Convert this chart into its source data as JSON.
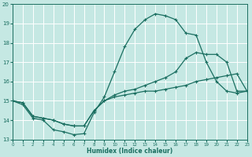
{
  "xlabel": "Humidex (Indice chaleur)",
  "bg_color": "#c5e8e3",
  "grid_color": "#b0d8d0",
  "line_color": "#1a6e60",
  "xlim": [
    0,
    23
  ],
  "ylim": [
    13,
    20
  ],
  "yticks": [
    13,
    14,
    15,
    16,
    17,
    18,
    19,
    20
  ],
  "xticks": [
    0,
    1,
    2,
    3,
    4,
    5,
    6,
    7,
    8,
    9,
    10,
    11,
    12,
    13,
    14,
    15,
    16,
    17,
    18,
    19,
    20,
    21,
    22,
    23
  ],
  "curve_upper_x": [
    0,
    1,
    2,
    3,
    4,
    5,
    6,
    7,
    8,
    9,
    10,
    11,
    12,
    13,
    14,
    15,
    16,
    17,
    18,
    19,
    20,
    21,
    22,
    23
  ],
  "curve_upper_y": [
    15.0,
    14.8,
    14.1,
    14.0,
    13.5,
    13.4,
    13.25,
    13.3,
    14.4,
    15.2,
    16.5,
    17.8,
    18.7,
    19.2,
    19.5,
    19.4,
    19.2,
    18.5,
    18.4,
    17.0,
    16.0,
    15.5,
    15.4,
    15.5
  ],
  "curve_mid_x": [
    0,
    1,
    2,
    3,
    4,
    5,
    6,
    7,
    8,
    9,
    10,
    11,
    12,
    13,
    14,
    15,
    16,
    17,
    18,
    19,
    20,
    21,
    22,
    23
  ],
  "curve_mid_y": [
    15.0,
    14.9,
    14.2,
    14.1,
    14.0,
    13.8,
    13.7,
    13.7,
    14.5,
    15.0,
    15.3,
    15.5,
    15.6,
    15.8,
    16.0,
    16.2,
    16.5,
    17.2,
    17.5,
    17.4,
    17.4,
    17.0,
    15.5,
    15.5
  ],
  "curve_low_x": [
    0,
    1,
    2,
    3,
    4,
    5,
    6,
    7,
    8,
    9,
    10,
    11,
    12,
    13,
    14,
    15,
    16,
    17,
    18,
    19,
    20,
    21,
    22,
    23
  ],
  "curve_low_y": [
    15.0,
    14.9,
    14.2,
    14.1,
    14.0,
    13.8,
    13.7,
    13.7,
    14.5,
    15.0,
    15.2,
    15.3,
    15.4,
    15.5,
    15.5,
    15.6,
    15.7,
    15.8,
    16.0,
    16.1,
    16.2,
    16.3,
    16.4,
    15.5
  ]
}
